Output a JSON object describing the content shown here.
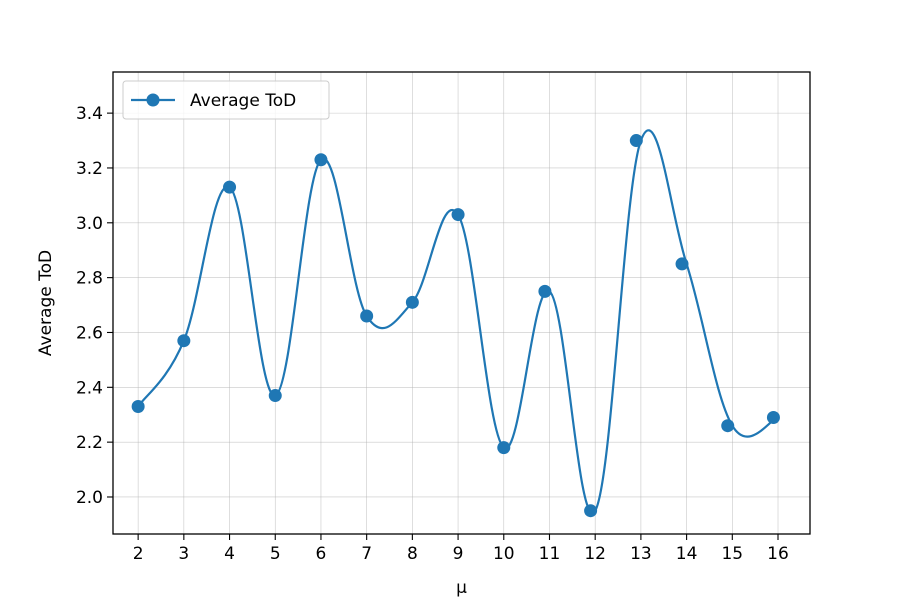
{
  "chart_data": {
    "type": "line",
    "title": "",
    "xlabel": "μ",
    "ylabel": "Average ToD",
    "x_ticks": [
      "2",
      "3",
      "4",
      "5",
      "6",
      "7",
      "8",
      "9",
      "10",
      "11",
      "12",
      "13",
      "14",
      "15",
      "16"
    ],
    "y_ticks": [
      "2.0",
      "2.2",
      "2.4",
      "2.6",
      "2.8",
      "3.0",
      "3.2",
      "3.4"
    ],
    "xlim": [
      1.45,
      16.7
    ],
    "ylim": [
      1.865,
      3.55
    ],
    "grid": true,
    "legend": {
      "location": "upper left",
      "entries": [
        "Average ToD"
      ]
    },
    "series": [
      {
        "name": "Average ToD",
        "color": "#1f77b4",
        "marker": "circle",
        "smoothed": true,
        "x": [
          2,
          3,
          4,
          5,
          6,
          7,
          8,
          9,
          10,
          11,
          12,
          13,
          14,
          15,
          16
        ],
        "y": [
          2.33,
          2.57,
          3.13,
          2.37,
          3.23,
          2.66,
          2.71,
          3.03,
          2.18,
          2.75,
          1.95,
          3.3,
          2.85,
          2.26,
          2.29
        ],
        "marker_x": [
          2.0,
          3.0,
          4.0,
          5.0,
          6.0,
          7.0,
          8.0,
          9.0,
          10.0,
          10.9,
          11.9,
          12.9,
          13.9,
          14.9,
          15.9
        ]
      }
    ]
  }
}
